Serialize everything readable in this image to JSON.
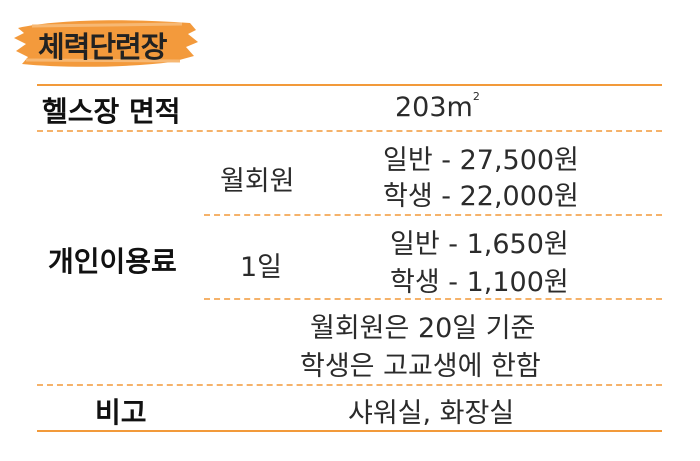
{
  "title": "체력단련장",
  "rows": {
    "area": {
      "label": "헬스장 면적",
      "value": "203m",
      "superscript": "2"
    },
    "fee": {
      "label": "개인이용료",
      "monthly": {
        "label": "월회원",
        "general": "일반 - 27,500원",
        "student": "학생 - 22,000원"
      },
      "daily": {
        "label": "1일",
        "general": "일반 - 1,650원",
        "student": "학생 - 1,100원"
      },
      "note_line1": "월회원은 20일 기준",
      "note_line2": "학생은 고교생에 한함"
    },
    "remarks": {
      "label": "비고",
      "value": "샤워실, 화장실"
    }
  },
  "colors": {
    "accent": "#f29a3a",
    "dashed": "#f5b26a",
    "brush": "#f39a3c"
  }
}
